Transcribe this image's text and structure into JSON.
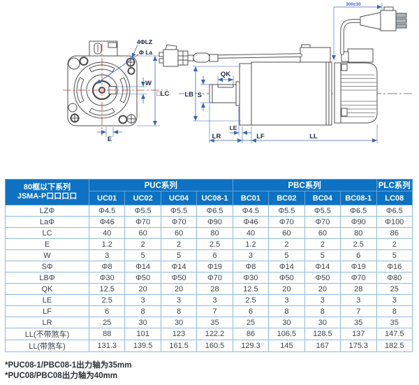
{
  "drawing": {
    "front_view": {
      "bolt_holes_label": "4ΦLZ",
      "pilot_label": "Φ La",
      "key_width_label": "W",
      "frame_label": "□LC",
      "key_offset_label": "E"
    },
    "side_view": {
      "key_length_label": "QK",
      "boss_label": "LB",
      "shaft_label": "S",
      "le_label": "LE",
      "lr_label": "LR",
      "lf_label": "LF",
      "ll_label": "LL",
      "cable_length_label": "300±30"
    }
  },
  "table": {
    "corner_header": {
      "line1": "80框以下系列",
      "line2": "JSMA-P口口口口"
    },
    "groups": [
      {
        "label": "PUC系列",
        "span": 4
      },
      {
        "label": "PBC系列",
        "span": 4
      },
      {
        "label": "PLC系列",
        "span": 1
      }
    ],
    "models": [
      "UC01",
      "UC02",
      "UC04",
      "UC08-1",
      "BC01",
      "BC02",
      "BC04",
      "BC08-1",
      "LC08"
    ],
    "rows": [
      {
        "label": "LZΦ",
        "values": [
          "Φ4.5",
          "Φ5.5",
          "Φ5.5",
          "Φ6.5",
          "Φ4.5",
          "Φ5.5",
          "Φ5.5",
          "Φ6.5",
          "Φ6.5"
        ]
      },
      {
        "label": "LaΦ",
        "values": [
          "Φ46",
          "Φ70",
          "Φ70",
          "Φ90",
          "Φ46",
          "Φ70",
          "Φ70",
          "Φ90",
          "Φ100"
        ]
      },
      {
        "label": "LC",
        "values": [
          "40",
          "60",
          "60",
          "80",
          "40",
          "60",
          "60",
          "80",
          "86"
        ]
      },
      {
        "label": "E",
        "values": [
          "1.2",
          "2",
          "2",
          "2.5",
          "1.2",
          "2",
          "2",
          "2.5",
          "2"
        ]
      },
      {
        "label": "W",
        "values": [
          "3",
          "5",
          "5",
          "6",
          "3",
          "5",
          "5",
          "6",
          "5"
        ]
      },
      {
        "label": "SΦ",
        "values": [
          "Φ8",
          "Φ14",
          "Φ14",
          "Φ19",
          "Φ8",
          "Φ14",
          "Φ14",
          "Φ19",
          "Φ16"
        ]
      },
      {
        "label": "LBΦ",
        "values": [
          "Φ30",
          "Φ50",
          "Φ50",
          "Φ70",
          "Φ30",
          "Φ50",
          "Φ50",
          "Φ70",
          "Φ80"
        ]
      },
      {
        "label": "QK",
        "values": [
          "12.5",
          "20",
          "20",
          "28",
          "12.5",
          "20",
          "20",
          "28",
          "25"
        ]
      },
      {
        "label": "LE",
        "values": [
          "2.5",
          "3",
          "3",
          "3",
          "2.5",
          "3",
          "3",
          "3",
          "3"
        ]
      },
      {
        "label": "LF",
        "values": [
          "6",
          "8",
          "8",
          "7",
          "6",
          "8",
          "8",
          "7",
          "8"
        ]
      },
      {
        "label": "LR",
        "values": [
          "25",
          "30",
          "30",
          "35",
          "25",
          "30",
          "30",
          "35",
          "35"
        ]
      },
      {
        "label": "LL(不带煞车)",
        "values": [
          "88",
          "101",
          "123",
          "122.2",
          "86",
          "106.5",
          "128.5",
          "137",
          "147.5"
        ]
      },
      {
        "label": "LL(带煞车)",
        "values": [
          "131.3",
          "139.5",
          "161.5",
          "160.5",
          "129.3",
          "145",
          "167",
          "175.3",
          "182.5"
        ]
      }
    ]
  },
  "footnotes": [
    "*PUC08-1/PBC08-1出力轴为35mm",
    "*PUC08/PBC08出力轴为40mm"
  ],
  "colors": {
    "header_bg": "#0d72c3",
    "header_text": "#ffffff",
    "grid_border": "#8fb8e0",
    "body_text": "#39424c",
    "dimension_blue": "#3c62b5",
    "centerline_red": "#c0392b",
    "outline_gray": "#4d4d4d"
  }
}
